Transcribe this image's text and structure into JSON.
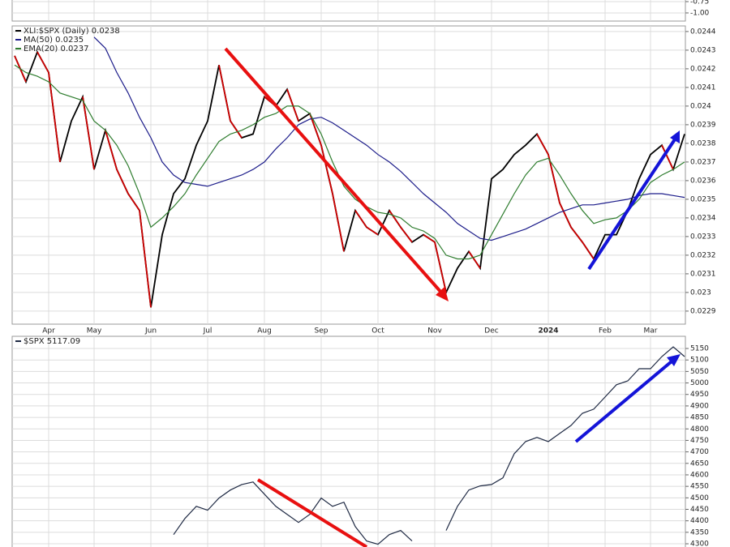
{
  "chart_data": [
    {
      "type": "line",
      "ylim": [
        -1.18,
        -0.714
      ],
      "yticks": [
        -0.75,
        {
          "value": -1,
          "label": "-1.00"
        }
      ],
      "grid": true
    },
    {
      "type": "line",
      "grid": true,
      "categories": [
        null,
        null,
        null,
        "Apr",
        null,
        null,
        null,
        "May",
        null,
        null,
        null,
        null,
        "Jun",
        null,
        null,
        null,
        null,
        "Jul",
        null,
        null,
        null,
        null,
        "Aug",
        null,
        null,
        null,
        null,
        "Sep",
        null,
        null,
        null,
        null,
        "Oct",
        null,
        null,
        null,
        null,
        "Nov",
        null,
        null,
        null,
        null,
        "Dec",
        null,
        null,
        null,
        null,
        "2024",
        null,
        null,
        null,
        null,
        "Feb",
        null,
        null,
        null,
        "Mar",
        null,
        null,
        null
      ],
      "ylim": [
        0.02283,
        0.02443
      ],
      "yticks": [
        0.0229,
        0.023,
        0.0231,
        0.0232,
        0.0233,
        0.0234,
        0.0235,
        0.0236,
        0.0237,
        0.0238,
        0.0239,
        0.024,
        0.0241,
        0.0242,
        0.0243,
        0.0244
      ],
      "series": [
        {
          "name": "XLI:$SPX (Daily) 0.0238",
          "color": "#000000",
          "down_color": "#cc0000",
          "values": [
            0.02427,
            0.02413,
            0.02429,
            0.02418,
            0.0237,
            0.02392,
            0.02405,
            0.02366,
            0.02387,
            0.02366,
            0.02353,
            0.02344,
            0.02292,
            0.02331,
            0.02353,
            0.02361,
            0.02379,
            0.02392,
            0.02422,
            0.02392,
            0.02383,
            0.02385,
            0.02405,
            0.024,
            0.02409,
            0.02392,
            0.02396,
            0.02379,
            0.02353,
            0.02322,
            0.02344,
            0.02335,
            0.02331,
            0.02344,
            0.02335,
            0.02327,
            0.02331,
            0.02327,
            0.023,
            0.02313,
            0.02322,
            0.02313,
            0.02361,
            0.02366,
            0.02374,
            0.02379,
            0.02385,
            0.02374,
            0.02348,
            0.02335,
            0.02327,
            0.02318,
            0.02331,
            0.02331,
            0.02344,
            0.02361,
            0.02374,
            0.02379,
            0.02366,
            0.02385
          ]
        },
        {
          "name": "MA(50) 0.0235",
          "color": "#1c1c8a",
          "values": [
            null,
            null,
            null,
            null,
            null,
            null,
            null,
            0.02437,
            0.02431,
            0.02418,
            0.02407,
            0.02394,
            0.02383,
            0.0237,
            0.02363,
            0.02359,
            0.02358,
            0.02357,
            0.02359,
            0.02361,
            0.02363,
            0.02366,
            0.0237,
            0.02377,
            0.02383,
            0.0239,
            0.02393,
            0.02394,
            0.02391,
            0.02387,
            0.02383,
            0.02379,
            0.02374,
            0.0237,
            0.02365,
            0.02359,
            0.02353,
            0.02348,
            0.02343,
            0.02337,
            0.02333,
            0.02329,
            0.02328,
            0.0233,
            0.02332,
            0.02334,
            0.02337,
            0.0234,
            0.02343,
            0.02345,
            0.02347,
            0.02347,
            0.02348,
            0.02349,
            0.0235,
            0.02352,
            0.02353,
            0.02353,
            0.02352,
            0.02351
          ]
        },
        {
          "name": "EMA(20) 0.0237",
          "color": "#2f7d2f",
          "values": [
            0.02422,
            0.02418,
            0.02416,
            0.02413,
            0.02407,
            0.02405,
            0.02403,
            0.02392,
            0.02387,
            0.02379,
            0.02368,
            0.02353,
            0.02335,
            0.0234,
            0.02346,
            0.02353,
            0.02363,
            0.02372,
            0.02381,
            0.02385,
            0.02387,
            0.0239,
            0.02394,
            0.02396,
            0.024,
            0.024,
            0.02396,
            0.02385,
            0.0237,
            0.02357,
            0.0235,
            0.02346,
            0.02343,
            0.02342,
            0.0234,
            0.02335,
            0.02333,
            0.02329,
            0.0232,
            0.02318,
            0.02318,
            0.0232,
            0.02331,
            0.02342,
            0.02353,
            0.02363,
            0.0237,
            0.02372,
            0.02363,
            0.02353,
            0.02344,
            0.02337,
            0.02339,
            0.0234,
            0.02344,
            0.0235,
            0.02359,
            0.02363,
            0.02366,
            0.0237
          ]
        }
      ]
    },
    {
      "type": "line",
      "grid": true,
      "ylim": [
        4286,
        5203
      ],
      "yticks": [
        4300,
        4350,
        4400,
        4450,
        4500,
        4550,
        4600,
        4650,
        4700,
        4750,
        4800,
        4850,
        4900,
        4950,
        5000,
        5050,
        5100,
        5150
      ],
      "series": [
        {
          "name": "$SPX 5117.09",
          "color": "#1f2a44",
          "values": [
            null,
            null,
            null,
            null,
            null,
            null,
            null,
            null,
            null,
            null,
            null,
            null,
            null,
            null,
            4340,
            4410,
            4463,
            4446,
            4499,
            4534,
            4558,
            4569,
            4516,
            4463,
            4428,
            4393,
            4428,
            4499,
            4463,
            4481,
            4375,
            4312,
            4298,
            4340,
            4358,
            4312,
            null,
            null,
            4358,
            4463,
            4534,
            4552,
            4558,
            4587,
            4692,
            4745,
            4763,
            4745,
            4780,
            4815,
            4868,
            4886,
            4939,
            4992,
            5009,
            5062,
            5062,
            5115,
            5157,
            5115
          ]
        }
      ]
    }
  ]
}
